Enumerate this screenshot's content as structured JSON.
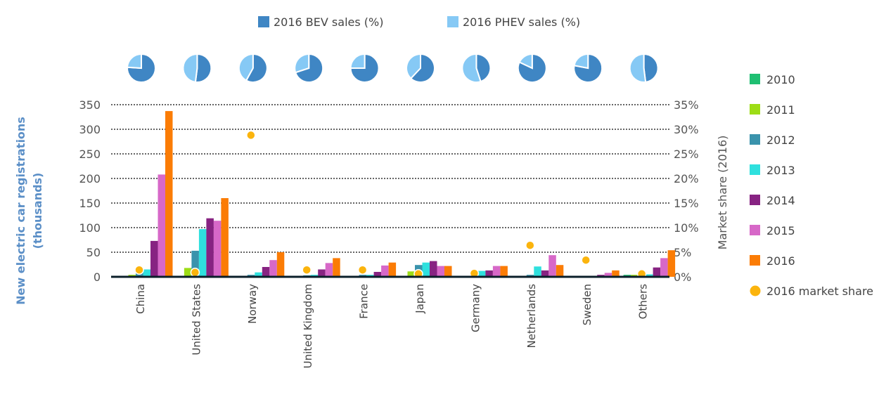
{
  "chart_data": {
    "type": "bar",
    "title": "",
    "xlabel": "",
    "ylabel": "New electric car registrations (thousands)",
    "y2label": "Market share (2016)",
    "ylim": [
      0,
      350
    ],
    "y2lim": [
      0,
      35
    ],
    "yticks": [
      "0",
      "50",
      "100",
      "150",
      "200",
      "250",
      "300",
      "350"
    ],
    "y2ticks": [
      "0%",
      "5%",
      "10%",
      "15%",
      "20%",
      "25%",
      "30%",
      "35%"
    ],
    "grid": true,
    "legend_position": "right",
    "categories": [
      "China",
      "United States",
      "Norway",
      "United Kingdom",
      "France",
      "Japan",
      "Germany",
      "Netherlands",
      "Sweden",
      "Others"
    ],
    "series": [
      {
        "name": "2010",
        "color": "#1fbf72",
        "values": [
          0,
          0,
          0,
          0,
          0,
          2,
          0,
          0,
          0,
          4
        ]
      },
      {
        "name": "2011",
        "color": "#9ddd16",
        "values": [
          4,
          18,
          2,
          0,
          0,
          11,
          0,
          0,
          0,
          4
        ]
      },
      {
        "name": "2012",
        "color": "#3a93ac",
        "values": [
          10,
          53,
          4,
          3,
          4,
          24,
          3,
          4,
          0,
          9
        ]
      },
      {
        "name": "2013",
        "color": "#2fe0de",
        "values": [
          15,
          97,
          9,
          4,
          4,
          29,
          12,
          21,
          0,
          5
        ]
      },
      {
        "name": "2014",
        "color": "#872382",
        "values": [
          73,
          119,
          20,
          15,
          10,
          32,
          13,
          13,
          4,
          19
        ]
      },
      {
        "name": "2015",
        "color": "#d768c8",
        "values": [
          208,
          114,
          34,
          28,
          23,
          22,
          22,
          44,
          8,
          38
        ]
      },
      {
        "name": "2016",
        "color": "#fb7c05",
        "values": [
          337,
          160,
          50,
          38,
          29,
          22,
          22,
          24,
          13,
          54
        ]
      }
    ],
    "market_share": {
      "name": "2016 market share",
      "color": "#fbb40d",
      "values": [
        1.4,
        0.9,
        28.8,
        1.4,
        1.4,
        0.6,
        0.7,
        6.4,
        3.4,
        0.6
      ]
    },
    "pies": {
      "legend": [
        {
          "name": "2016 BEV sales (%)",
          "color": "#3f86c4"
        },
        {
          "name": "2016 PHEV sales (%)",
          "color": "#86c9f5"
        }
      ],
      "bev_share": [
        76,
        52,
        58,
        70,
        75,
        62,
        45,
        82,
        78,
        48
      ]
    }
  }
}
